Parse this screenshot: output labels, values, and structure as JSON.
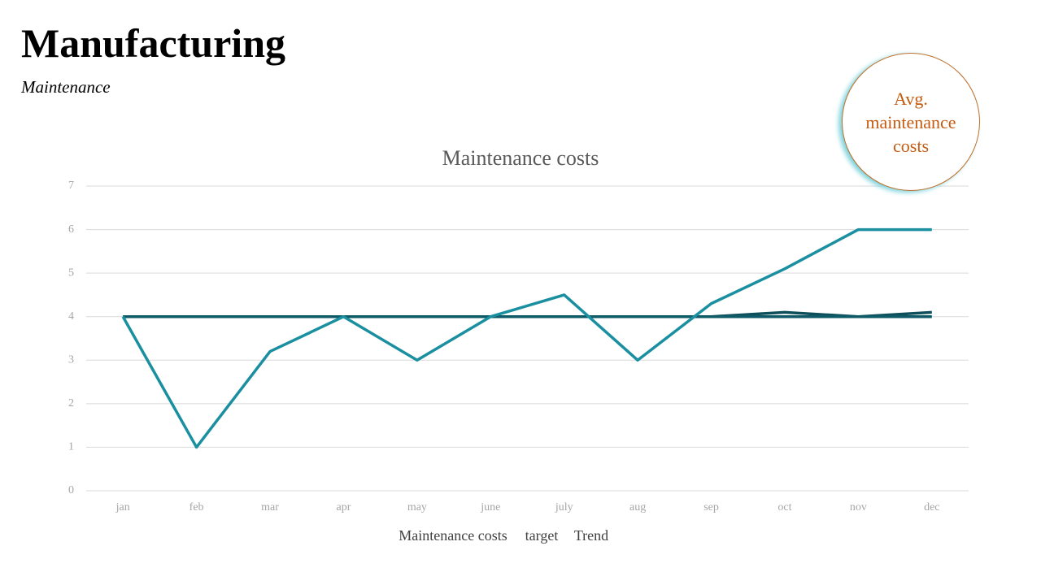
{
  "header": {
    "title": "Manufacturing",
    "subtitle": "Maintenance"
  },
  "callout": "Avg. maintenance costs",
  "chart_data": {
    "type": "line",
    "title": "Maintenance costs",
    "categories": [
      "jan",
      "feb",
      "mar",
      "apr",
      "may",
      "june",
      "july",
      "aug",
      "sep",
      "oct",
      "nov",
      "dec"
    ],
    "series": [
      {
        "name": "Maintenance costs",
        "color": "#1a8fa0",
        "values": [
          4,
          1,
          3.2,
          4,
          3,
          4,
          4.5,
          3,
          4.3,
          5.1,
          6,
          6
        ]
      },
      {
        "name": "target",
        "color": "#0e5a66",
        "values": [
          4,
          4,
          4,
          4,
          4,
          4,
          4,
          4,
          4,
          4,
          4,
          4
        ]
      },
      {
        "name": "Trend",
        "color": "#0d4f5a",
        "values": [
          4,
          4,
          4,
          4,
          4,
          4,
          4,
          4,
          4,
          4.1,
          4,
          4.1
        ]
      }
    ],
    "ylim": [
      0,
      7
    ],
    "yticks": [
      0,
      1,
      2,
      3,
      4,
      5,
      6,
      7
    ],
    "grid": true
  }
}
